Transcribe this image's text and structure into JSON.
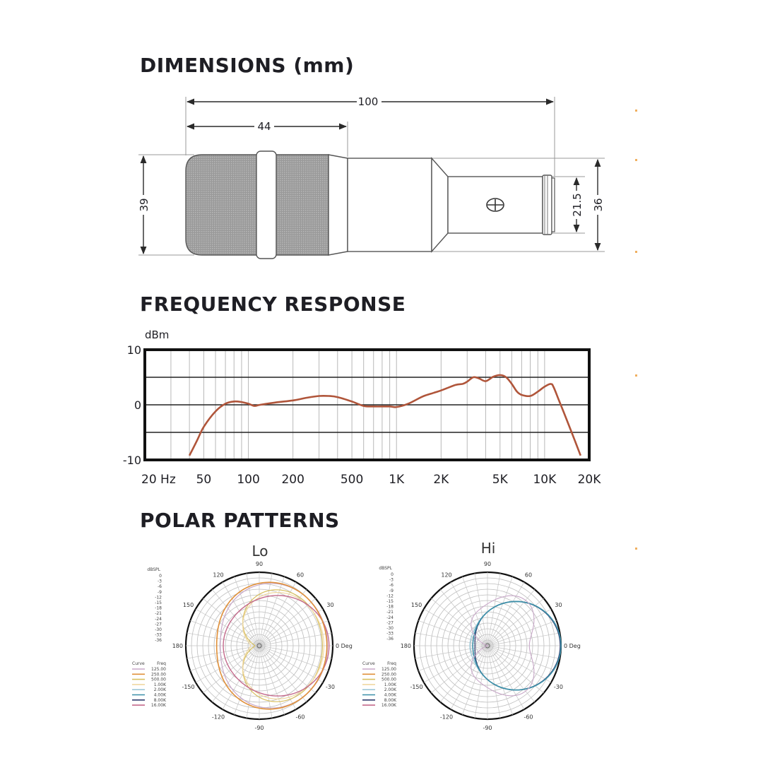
{
  "sections": {
    "dimensions": "DIMENSIONS (mm)",
    "frequency": "FREQUENCY RESPONSE",
    "polar": "POLAR PATTERNS"
  },
  "dimensions": {
    "overall_length": "100",
    "head_length": "44",
    "head_diameter": "39",
    "connector_diameter": "21.5",
    "body_diameter": "36"
  },
  "frequency_response": {
    "y_unit": "dBm",
    "y_ticks": [
      "10",
      "0",
      "-10"
    ],
    "x_ticks": [
      "20 Hz",
      "50",
      "100",
      "200",
      "500",
      "1K",
      "2K",
      "5K",
      "10K",
      "20K"
    ],
    "curve_color": "#b0553a",
    "curve": [
      {
        "hz": 40,
        "db": -9.2
      },
      {
        "hz": 45,
        "db": -6.5
      },
      {
        "hz": 50,
        "db": -4.0
      },
      {
        "hz": 60,
        "db": -1.2
      },
      {
        "hz": 70,
        "db": 0.2
      },
      {
        "hz": 80,
        "db": 0.6
      },
      {
        "hz": 90,
        "db": 0.5
      },
      {
        "hz": 100,
        "db": 0.2
      },
      {
        "hz": 110,
        "db": -0.2
      },
      {
        "hz": 120,
        "db": 0.0
      },
      {
        "hz": 150,
        "db": 0.4
      },
      {
        "hz": 200,
        "db": 0.8
      },
      {
        "hz": 250,
        "db": 1.3
      },
      {
        "hz": 300,
        "db": 1.6
      },
      {
        "hz": 350,
        "db": 1.6
      },
      {
        "hz": 400,
        "db": 1.4
      },
      {
        "hz": 500,
        "db": 0.6
      },
      {
        "hz": 600,
        "db": -0.2
      },
      {
        "hz": 700,
        "db": -0.3
      },
      {
        "hz": 900,
        "db": -0.3
      },
      {
        "hz": 1000,
        "db": -0.4
      },
      {
        "hz": 1200,
        "db": 0.2
      },
      {
        "hz": 1500,
        "db": 1.5
      },
      {
        "hz": 1800,
        "db": 2.2
      },
      {
        "hz": 2000,
        "db": 2.6
      },
      {
        "hz": 2500,
        "db": 3.6
      },
      {
        "hz": 2800,
        "db": 3.8
      },
      {
        "hz": 3000,
        "db": 4.2
      },
      {
        "hz": 3300,
        "db": 5.0
      },
      {
        "hz": 3600,
        "db": 4.8
      },
      {
        "hz": 4000,
        "db": 4.3
      },
      {
        "hz": 4500,
        "db": 5.1
      },
      {
        "hz": 5000,
        "db": 5.4
      },
      {
        "hz": 5500,
        "db": 5.0
      },
      {
        "hz": 6000,
        "db": 3.8
      },
      {
        "hz": 6500,
        "db": 2.4
      },
      {
        "hz": 7000,
        "db": 1.8
      },
      {
        "hz": 8000,
        "db": 1.6
      },
      {
        "hz": 9000,
        "db": 2.4
      },
      {
        "hz": 10000,
        "db": 3.3
      },
      {
        "hz": 11000,
        "db": 3.8
      },
      {
        "hz": 11500,
        "db": 3.2
      },
      {
        "hz": 12500,
        "db": 0.8
      },
      {
        "hz": 14000,
        "db": -2.5
      },
      {
        "hz": 16000,
        "db": -6.5
      },
      {
        "hz": 17500,
        "db": -9.2
      }
    ]
  },
  "polar_patterns": {
    "left": {
      "title": "Lo"
    },
    "right": {
      "title": "Hi"
    },
    "angle_labels": [
      "90",
      "60",
      "30",
      "0 Deg",
      "-30",
      "-60",
      "-90",
      "-120",
      "-150",
      "180",
      "150",
      "120"
    ],
    "scale_title": "dBSPL",
    "scale_values": [
      "0",
      "-3",
      "-6",
      "-9",
      "-12",
      "-15",
      "-18",
      "-21",
      "-24",
      "-27",
      "-30",
      "-33",
      "-36"
    ],
    "legend_headers": [
      "Curve",
      "Freq"
    ],
    "legend": [
      {
        "freq": "125.00",
        "color": "#c8a8c8"
      },
      {
        "freq": "250.00",
        "color": "#e0903a"
      },
      {
        "freq": "500.00",
        "color": "#d8c060"
      },
      {
        "freq": "1.00K",
        "color": "#f0d8a0"
      },
      {
        "freq": "2.00K",
        "color": "#9ec8d8"
      },
      {
        "freq": "4.00K",
        "color": "#3b8fa8"
      },
      {
        "freq": "8.00K",
        "color": "#2e3a6e"
      },
      {
        "freq": "16.00K",
        "color": "#c46a8c"
      }
    ]
  }
}
